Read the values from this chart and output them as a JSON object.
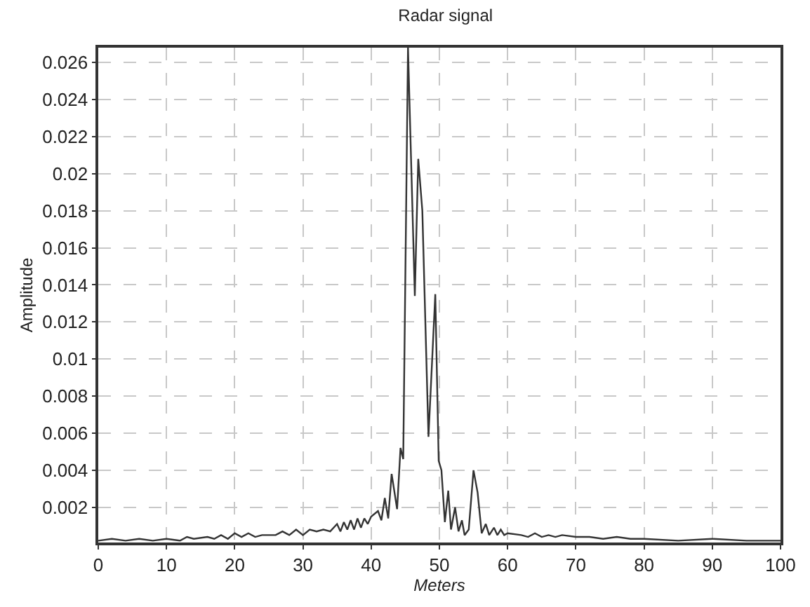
{
  "chart_data": {
    "type": "line",
    "title": "Radar signal",
    "xlabel": "Meters",
    "ylabel": "Amplitude",
    "series": [
      {
        "color": "#333333",
        "x": [
          0,
          2,
          4,
          6,
          8,
          10,
          12,
          13,
          14,
          16,
          17,
          18,
          19,
          20,
          21,
          22,
          23,
          24,
          26,
          27,
          28,
          29,
          30,
          31,
          32,
          33,
          34,
          35,
          35.5,
          36,
          36.5,
          37,
          37.5,
          38,
          38.5,
          39,
          39.5,
          40,
          41,
          41.5,
          42,
          42.5,
          43,
          43.8,
          44.3,
          44.7,
          45.4,
          46.4,
          46.9,
          47.5,
          48.4,
          49.4,
          49.9,
          50.3,
          50.8,
          51.3,
          51.7,
          52.3,
          52.8,
          53.3,
          53.7,
          54.3,
          55.0,
          55.6,
          56.2,
          56.8,
          57.3,
          58,
          58.5,
          59,
          59.5,
          60,
          62,
          63,
          64,
          65,
          66,
          67,
          68,
          70,
          72,
          74,
          76,
          78,
          80,
          85,
          90,
          95,
          100
        ],
        "values": [
          0.0002,
          0.0003,
          0.0002,
          0.0003,
          0.0002,
          0.0003,
          0.0002,
          0.0004,
          0.0003,
          0.0004,
          0.0003,
          0.0005,
          0.0003,
          0.0006,
          0.0004,
          0.0006,
          0.0004,
          0.0005,
          0.0005,
          0.0007,
          0.0005,
          0.0008,
          0.0005,
          0.0008,
          0.0007,
          0.0008,
          0.0007,
          0.0011,
          0.0007,
          0.0012,
          0.0008,
          0.0013,
          0.0008,
          0.0014,
          0.0009,
          0.0014,
          0.0011,
          0.0015,
          0.0018,
          0.0013,
          0.0025,
          0.0014,
          0.0038,
          0.0019,
          0.0052,
          0.0046,
          0.0268,
          0.0134,
          0.0208,
          0.018,
          0.0058,
          0.0135,
          0.0045,
          0.004,
          0.0012,
          0.0029,
          0.0008,
          0.002,
          0.0007,
          0.0013,
          0.0005,
          0.0008,
          0.004,
          0.0028,
          0.0006,
          0.0011,
          0.0005,
          0.0009,
          0.0005,
          0.0008,
          0.0005,
          0.0006,
          0.0005,
          0.0004,
          0.0006,
          0.0004,
          0.0005,
          0.0004,
          0.0005,
          0.0004,
          0.0004,
          0.0003,
          0.0004,
          0.0003,
          0.0003,
          0.0002,
          0.0003,
          0.0002,
          0.0002
        ]
      }
    ],
    "xlim": [
      0,
      100
    ],
    "xticks": [
      0,
      10,
      20,
      30,
      40,
      50,
      60,
      70,
      80,
      90,
      100
    ],
    "ylim": [
      0.0001,
      0.0268
    ],
    "yticks": [
      0.002,
      0.004,
      0.006,
      0.008,
      0.01,
      0.012,
      0.014,
      0.016,
      0.018,
      0.02,
      0.022,
      0.024,
      0.026
    ],
    "grid": true,
    "marker": "none",
    "line_style": "solid"
  }
}
